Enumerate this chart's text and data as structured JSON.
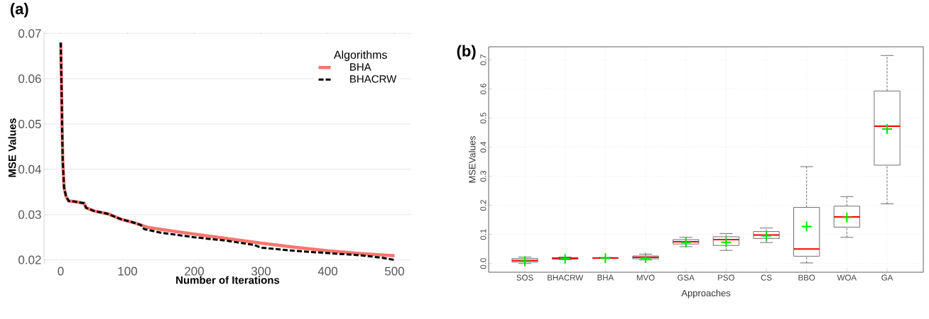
{
  "chart_data": [
    {
      "type": "line",
      "title": "(a)",
      "xlabel": "Number of Iterations",
      "ylabel": "MSE Values",
      "legend_title": "Algorithms",
      "legend": "top right",
      "grid": "y",
      "xlim": [
        -25,
        525
      ],
      "ylim": [
        0.019,
        0.0705
      ],
      "xticks": [
        0,
        100,
        200,
        300,
        400,
        500
      ],
      "yticks": [
        0.02,
        0.03,
        0.04,
        0.05,
        0.06,
        0.07
      ],
      "series": [
        {
          "name": "BHA",
          "color": "#f8766d",
          "line_style": "solid",
          "x": [
            0,
            1,
            2,
            3,
            5,
            8,
            12,
            20,
            35,
            38,
            50,
            70,
            90,
            110,
            130,
            160,
            200,
            250,
            300,
            350,
            400,
            450,
            500
          ],
          "values": [
            0.068,
            0.06,
            0.05,
            0.042,
            0.036,
            0.034,
            0.033,
            0.0329,
            0.0325,
            0.0315,
            0.0308,
            0.0302,
            0.029,
            0.0282,
            0.0272,
            0.0265,
            0.0257,
            0.0247,
            0.0237,
            0.0228,
            0.022,
            0.0214,
            0.0209
          ]
        },
        {
          "name": "BHACRW",
          "color": "#000000",
          "line_style": "dashed",
          "x": [
            0,
            1,
            2,
            3,
            5,
            8,
            12,
            20,
            35,
            38,
            50,
            70,
            90,
            110,
            120,
            125,
            150,
            200,
            250,
            290,
            300,
            350,
            400,
            450,
            480,
            500
          ],
          "values": [
            0.068,
            0.06,
            0.05,
            0.042,
            0.036,
            0.034,
            0.033,
            0.0329,
            0.0325,
            0.0315,
            0.0308,
            0.0302,
            0.029,
            0.0282,
            0.0277,
            0.0268,
            0.026,
            0.025,
            0.0242,
            0.0233,
            0.0227,
            0.022,
            0.0215,
            0.021,
            0.0205,
            0.02
          ]
        }
      ]
    },
    {
      "type": "box",
      "title": "(b)",
      "xlabel": "Approaches",
      "ylabel": "MSEValues",
      "grid": true,
      "categories": [
        "SOS",
        "BHACRW",
        "BHA",
        "MVO",
        "GSA",
        "PSO",
        "CS",
        "BBO",
        "WOA",
        "GA"
      ],
      "ylim": [
        -0.03,
        0.745
      ],
      "yticks": [
        {
          "value": 0,
          "label": "0.0"
        },
        {
          "value": 0.1,
          "label": "0.1"
        },
        {
          "value": 0.2,
          "label": "0.2"
        },
        {
          "value": 0.3,
          "label": "0.3"
        },
        {
          "value": 0.4,
          "label": "0.4"
        },
        {
          "value": 0.5,
          "label": "0.5"
        },
        {
          "value": 0.6,
          "label": "0.6"
        },
        {
          "value": 0.7,
          "label": "0.7"
        }
      ],
      "boxes": [
        {
          "low": 0,
          "q1": 0.005,
          "median": 0.01,
          "q3": 0.017,
          "high": 0.022,
          "mean": 0.008
        },
        {
          "low": 0.013,
          "q1": 0.015,
          "median": 0.018,
          "q3": 0.02,
          "high": 0.022,
          "mean": 0.016
        },
        {
          "low": 0.017,
          "q1": 0.018,
          "median": 0.019,
          "q3": 0.02,
          "high": 0.021,
          "mean": 0.018
        },
        {
          "low": 0.012,
          "q1": 0.016,
          "median": 0.021,
          "q3": 0.026,
          "high": 0.032,
          "mean": 0.019
        },
        {
          "low": 0.058,
          "q1": 0.067,
          "median": 0.075,
          "q3": 0.082,
          "high": 0.09,
          "mean": 0.072
        },
        {
          "low": 0.045,
          "q1": 0.062,
          "median": 0.082,
          "q3": 0.092,
          "high": 0.103,
          "mean": 0.073
        },
        {
          "low": 0.072,
          "q1": 0.086,
          "median": 0.098,
          "q3": 0.11,
          "high": 0.122,
          "mean": 0.095
        },
        {
          "low": 0.002,
          "q1": 0.025,
          "median": 0.05,
          "q3": 0.193,
          "high": 0.333,
          "mean": 0.127
        },
        {
          "low": 0.09,
          "q1": 0.125,
          "median": 0.16,
          "q3": 0.197,
          "high": 0.23,
          "mean": 0.158
        },
        {
          "low": 0.205,
          "q1": 0.338,
          "median": 0.472,
          "q3": 0.593,
          "high": 0.715,
          "mean": 0.462
        }
      ]
    }
  ]
}
